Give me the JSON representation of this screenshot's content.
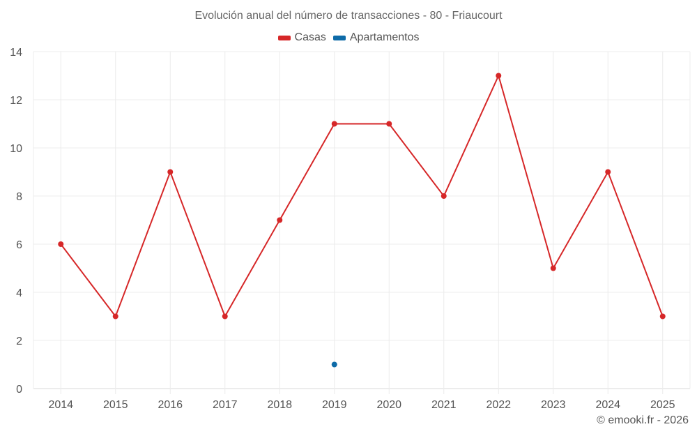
{
  "chart_data": {
    "type": "line",
    "title": "Evolución anual del número de transacciones - 80 - Friaucourt",
    "xlabel": "",
    "ylabel": "",
    "categories": [
      "2014",
      "2015",
      "2016",
      "2017",
      "2018",
      "2019",
      "2020",
      "2021",
      "2022",
      "2023",
      "2024",
      "2025"
    ],
    "series": [
      {
        "name": "Casas",
        "color": "#d62728",
        "values": [
          6,
          3,
          9,
          3,
          7,
          11,
          11,
          8,
          13,
          5,
          9,
          3
        ]
      },
      {
        "name": "Apartamentos",
        "color": "#0e6ba8",
        "values": [
          null,
          null,
          null,
          null,
          null,
          1,
          null,
          null,
          null,
          null,
          null,
          null
        ]
      }
    ],
    "ylim": [
      0,
      14
    ],
    "yticks": [
      0,
      2,
      4,
      6,
      8,
      10,
      12,
      14
    ],
    "grid": true,
    "legend_position": "top"
  },
  "legend": [
    {
      "label": "Casas",
      "color": "#d62728"
    },
    {
      "label": "Apartamentos",
      "color": "#0e6ba8"
    }
  ],
  "footer": "© emooki.fr - 2026"
}
